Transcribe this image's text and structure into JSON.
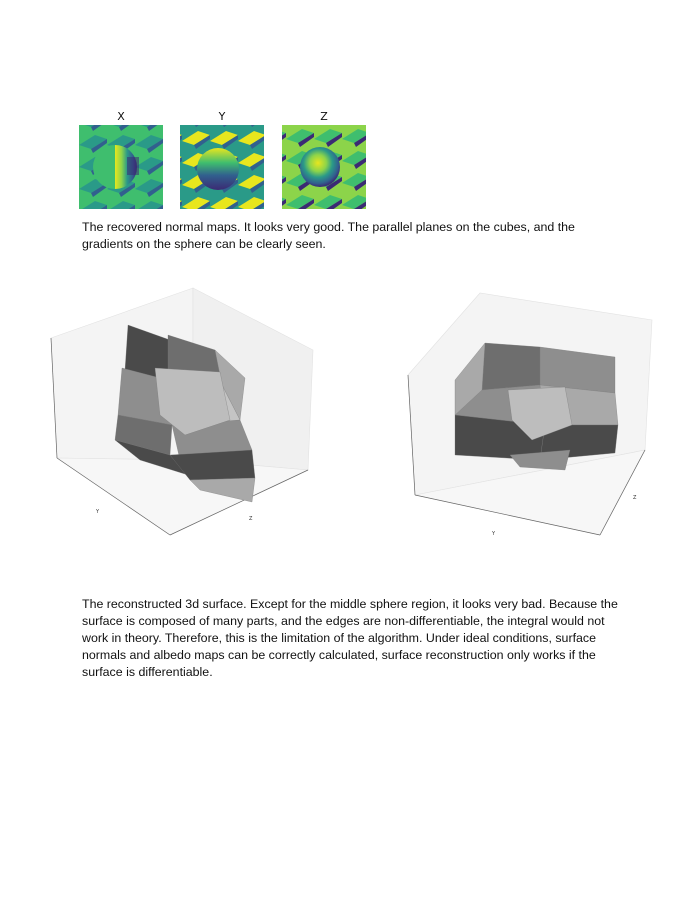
{
  "normal_maps": {
    "labels": [
      "X",
      "Y",
      "Z"
    ],
    "palette": {
      "dark": "#3b2a74",
      "blue": "#31608e",
      "teal": "#2a9a88",
      "green": "#3fbe6e",
      "lime": "#8cd44a",
      "yellow": "#e8e61e"
    }
  },
  "captions": {
    "normal_maps": "The recovered normal maps. It looks very good. The parallel planes on the cubes, and the gradients on the sphere can be clearly seen.",
    "surface": "The reconstructed 3d surface. Except for the middle sphere region, it looks very bad. Because the surface is composed of many parts, and the edges are non-differentiable, the integral would not work in theory. Therefore, this is the limitation of the algorithm. Under ideal conditions, surface normals and albedo maps can be correctly calculated, surface reconstruction only works if the surface is differentiable."
  },
  "surface_plots": {
    "left": {
      "y_label": "Y",
      "z_label": "Z"
    },
    "right": {
      "y_label": "Y",
      "z_label": "Z"
    },
    "grays": [
      "#4a4a4a",
      "#6e6e6e",
      "#8e8e8e",
      "#a9a9a9",
      "#c4c4c4",
      "#d8d8d8"
    ]
  }
}
